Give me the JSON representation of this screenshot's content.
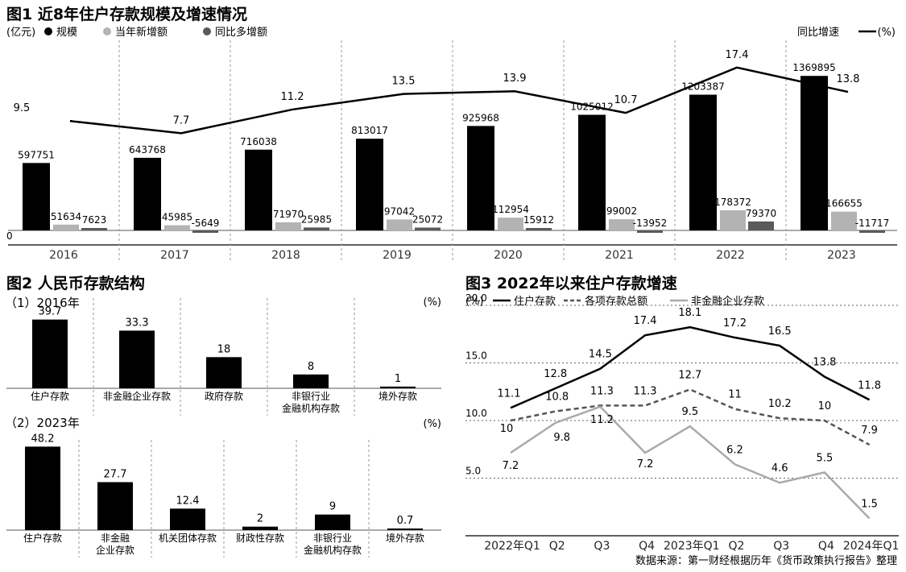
{
  "chart_data": [
    {
      "type": "bar",
      "title": "图1 近8年住户存款规模及增速情况",
      "left_unit": "(亿元)",
      "right_label": "同比增速",
      "right_unit": "(%)",
      "zero_label": "0",
      "categories": [
        "2016",
        "2017",
        "2018",
        "2019",
        "2020",
        "2021",
        "2022",
        "2023"
      ],
      "series": [
        {
          "name": "规模",
          "color": "#000000",
          "values": [
            597751,
            643768,
            716038,
            813017,
            925968,
            1025012,
            1203387,
            1369895
          ]
        },
        {
          "name": "当年新增额",
          "color": "#b3b3b3",
          "values": [
            51634,
            45985,
            71970,
            97042,
            112954,
            99002,
            178372,
            166655
          ]
        },
        {
          "name": "同比多增额",
          "color": "#5a5a5a",
          "values": [
            7623,
            -5649,
            25985,
            25072,
            15912,
            -13952,
            79370,
            -11717
          ]
        }
      ],
      "line": {
        "name": "同比增速",
        "values": [
          9.5,
          7.7,
          11.2,
          13.5,
          13.9,
          10.7,
          17.4,
          13.8
        ]
      }
    },
    {
      "type": "bar",
      "title": "图2 人民币存款结构",
      "subtitle": "（1）2016年",
      "unit": "(%)",
      "categories": [
        [
          "住户存款"
        ],
        [
          "非金融企业存款"
        ],
        [
          "政府存款"
        ],
        [
          "非银行业",
          "金融机构存款"
        ],
        [
          "境外存款"
        ]
      ],
      "values": [
        39.7,
        33.3,
        18,
        8,
        1
      ]
    },
    {
      "type": "bar",
      "subtitle": "（2）2023年",
      "unit": "(%)",
      "categories": [
        [
          "住户存款"
        ],
        [
          "非金融",
          "企业存款"
        ],
        [
          "机关团体存款"
        ],
        [
          "财政性存款"
        ],
        [
          "非银行业",
          "金融机构存款"
        ],
        [
          "境外存款"
        ]
      ],
      "values": [
        48.2,
        27.7,
        12.4,
        2,
        9,
        0.7
      ]
    },
    {
      "type": "line",
      "title": "图3 2022年以来住户存款增速",
      "unit": "(%)",
      "categories": [
        "2022年Q1",
        "Q2",
        "Q3",
        "Q4",
        "2023年Q1",
        "Q2",
        "Q3",
        "Q4",
        "2024年Q1"
      ],
      "yticks": [
        "20.0",
        "15.0",
        "10.0",
        "5.0"
      ],
      "ylim": [
        0,
        20
      ],
      "series": [
        {
          "name": "住户存款",
          "style": "solid-black",
          "values": [
            11.1,
            12.8,
            14.5,
            17.4,
            18.1,
            17.2,
            16.5,
            13.8,
            11.8
          ]
        },
        {
          "name": "各项存款总额",
          "style": "dashed",
          "values": [
            10,
            10.8,
            11.3,
            11.3,
            12.7,
            11,
            10.2,
            10,
            7.9
          ]
        },
        {
          "name": "非金融企业存款",
          "style": "solid-gray",
          "values": [
            7.2,
            9.8,
            11.2,
            7.2,
            9.5,
            6.2,
            4.6,
            5.5,
            1.5
          ]
        }
      ]
    }
  ],
  "source_note": "数据来源：第一财经根据历年《货币政策执行报告》整理"
}
